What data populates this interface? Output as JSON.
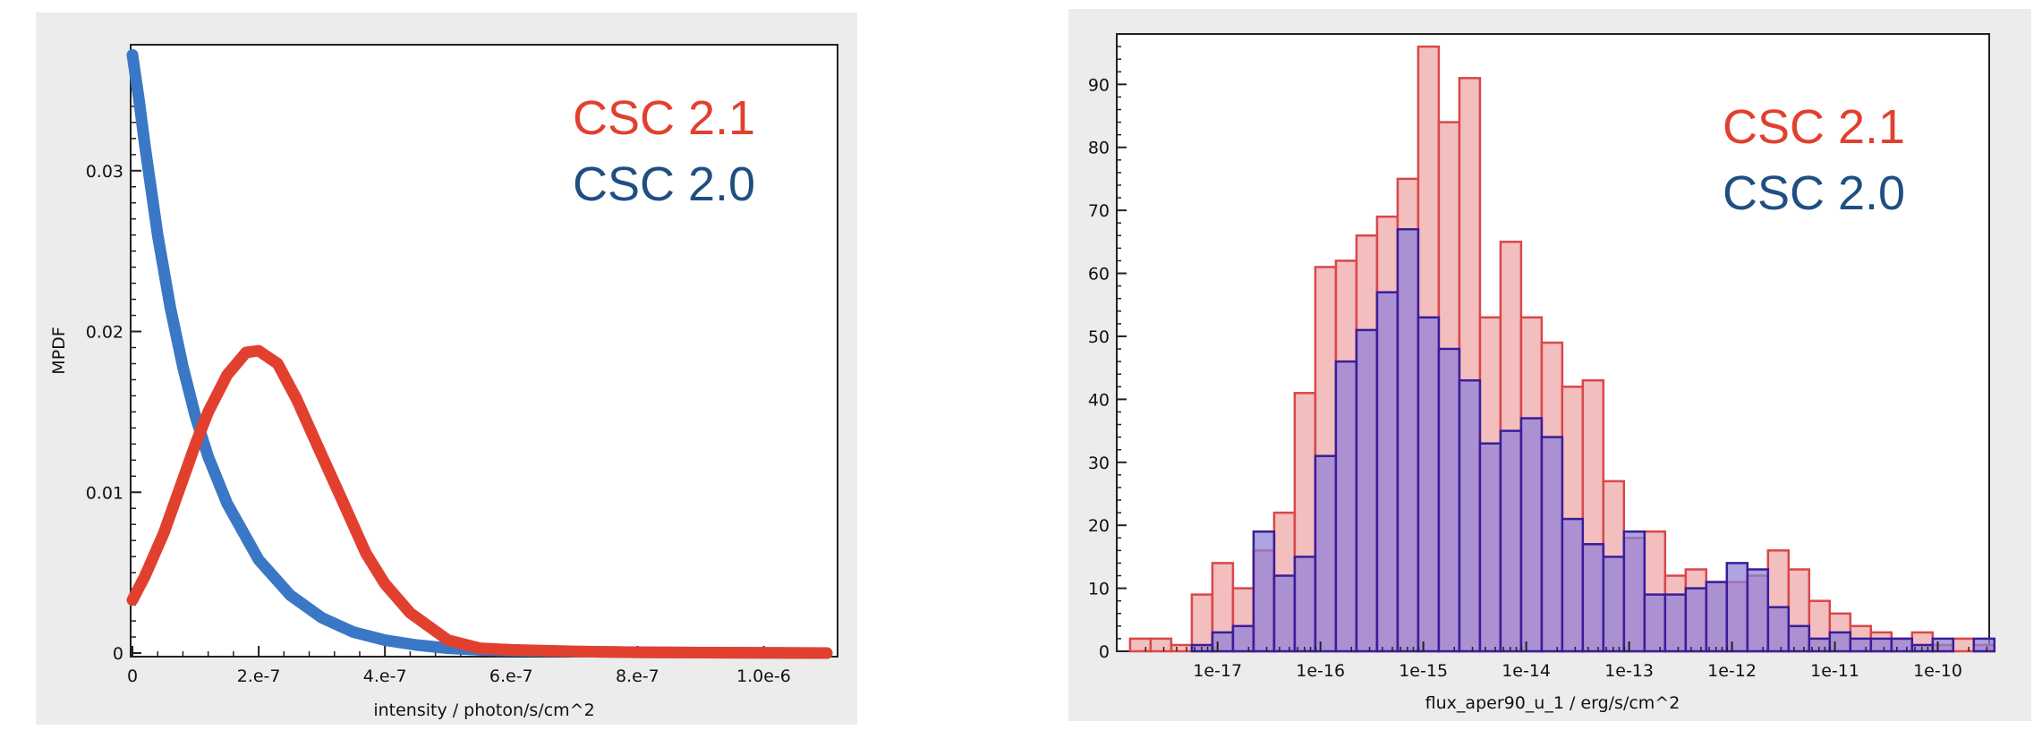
{
  "colors": {
    "csc21": "#e2402f",
    "csc20": "#3a78c5",
    "csc20_legend": "#1f4f82",
    "hist21_fill": "#f1b3b3",
    "hist21_edge": "#d9474a",
    "hist20_fill": "#8f7fd8",
    "hist20_edge": "#3a1d9a"
  },
  "chart_data": [
    {
      "type": "line",
      "xlabel": "intensity / photon/s/cm^2",
      "ylabel": "MPDF",
      "xlim": [
        0,
        1.1e-06
      ],
      "ylim": [
        0,
        0.0375
      ],
      "x_ticks": [
        0,
        2e-07,
        4e-07,
        6e-07,
        8e-07,
        1e-06
      ],
      "x_tick_labels": [
        "0",
        "2.e-7",
        "4.e-7",
        "6.e-7",
        "8.e-7",
        "1.0e-6"
      ],
      "y_ticks": [
        0,
        0.01,
        0.02,
        0.03
      ],
      "y_tick_labels": [
        "0",
        "0.01",
        "0.02",
        "0.03"
      ],
      "grid": false,
      "legend": {
        "position": "top-right"
      },
      "series": [
        {
          "name": "CSC 2.1",
          "x": [
            0,
            2e-08,
            5e-08,
            8e-08,
            1e-07,
            1.2e-07,
            1.5e-07,
            1.8e-07,
            2e-07,
            2.3e-07,
            2.6e-07,
            3e-07,
            3.3e-07,
            3.7e-07,
            4e-07,
            4.4e-07,
            5e-07,
            5.5e-07,
            6e-07,
            7e-07,
            8e-07,
            9e-07,
            1e-06,
            1.1e-06
          ],
          "y": [
            0.0033,
            0.0048,
            0.0075,
            0.0108,
            0.013,
            0.015,
            0.0173,
            0.0187,
            0.0188,
            0.018,
            0.0158,
            0.0123,
            0.0097,
            0.0062,
            0.0043,
            0.0025,
            0.0008,
            0.0003,
            0.0002,
            0.0001,
            5e-05,
            3e-05,
            1e-05,
            0.0
          ]
        },
        {
          "name": "CSC 2.0",
          "x": [
            0,
            1e-08,
            2e-08,
            4e-08,
            6e-08,
            8e-08,
            1e-07,
            1.2e-07,
            1.5e-07,
            2e-07,
            2.5e-07,
            3e-07,
            3.5e-07,
            4e-07,
            4.5e-07,
            5e-07,
            5.5e-07,
            6e-07,
            7e-07,
            8e-07,
            9e-07,
            1e-06,
            1.1e-06
          ],
          "y": [
            0.0372,
            0.0345,
            0.0315,
            0.026,
            0.0215,
            0.0178,
            0.0147,
            0.0122,
            0.0093,
            0.0058,
            0.0036,
            0.0022,
            0.0013,
            0.0008,
            0.0005,
            0.0003,
            0.0002,
            0.00015,
            0.0001,
            5e-05,
            3e-05,
            1e-05,
            0.0
          ]
        }
      ]
    },
    {
      "type": "bar",
      "xlabel": "flux_aper90_u_1 / erg/s/cm^2",
      "ylabel": "",
      "x_scale": "log",
      "bin_width_dex": 0.2,
      "xlim_log10": [
        -17.98,
        -9.5
      ],
      "ylim": [
        0,
        98
      ],
      "x_tick_labels": [
        "1e-17",
        "1e-16",
        "1e-15",
        "1e-14",
        "1e-13",
        "1e-12",
        "1e-11",
        "1e-10"
      ],
      "x_ticks_log10": [
        -17,
        -16,
        -15,
        -14,
        -13,
        -12,
        -11,
        -10
      ],
      "y_ticks": [
        0,
        10,
        20,
        30,
        40,
        50,
        60,
        70,
        80,
        90
      ],
      "y_tick_labels": [
        "0",
        "10",
        "20",
        "30",
        "40",
        "50",
        "60",
        "70",
        "80",
        "90"
      ],
      "grid": false,
      "legend": {
        "position": "top-right"
      },
      "bin_left_log10": [
        -17.85,
        -17.65,
        -17.45,
        -17.25,
        -17.05,
        -16.85,
        -16.65,
        -16.45,
        -16.25,
        -16.05,
        -15.85,
        -15.65,
        -15.45,
        -15.25,
        -15.05,
        -14.85,
        -14.65,
        -14.45,
        -14.25,
        -14.05,
        -13.85,
        -13.65,
        -13.45,
        -13.25,
        -13.05,
        -12.85,
        -12.65,
        -12.45,
        -12.25,
        -12.05,
        -11.85,
        -11.65,
        -11.45,
        -11.25,
        -11.05,
        -10.85,
        -10.65,
        -10.45,
        -10.25,
        -10.05,
        -9.85,
        -9.65
      ],
      "series": [
        {
          "name": "CSC 2.1",
          "values": [
            2,
            2,
            1,
            9,
            14,
            10,
            16,
            22,
            41,
            61,
            62,
            66,
            69,
            75,
            96,
            84,
            91,
            53,
            65,
            53,
            49,
            42,
            43,
            27,
            18,
            19,
            12,
            13,
            11,
            11,
            12,
            16,
            13,
            8,
            6,
            4,
            3,
            2,
            3,
            1,
            2,
            1
          ]
        },
        {
          "name": "CSC 2.0",
          "values": [
            0,
            0,
            0,
            1,
            3,
            4,
            19,
            12,
            15,
            31,
            46,
            51,
            57,
            67,
            53,
            48,
            43,
            33,
            35,
            37,
            34,
            21,
            17,
            15,
            19,
            9,
            9,
            10,
            11,
            14,
            13,
            7,
            4,
            2,
            3,
            2,
            2,
            2,
            1,
            2,
            0,
            2
          ]
        }
      ]
    }
  ]
}
